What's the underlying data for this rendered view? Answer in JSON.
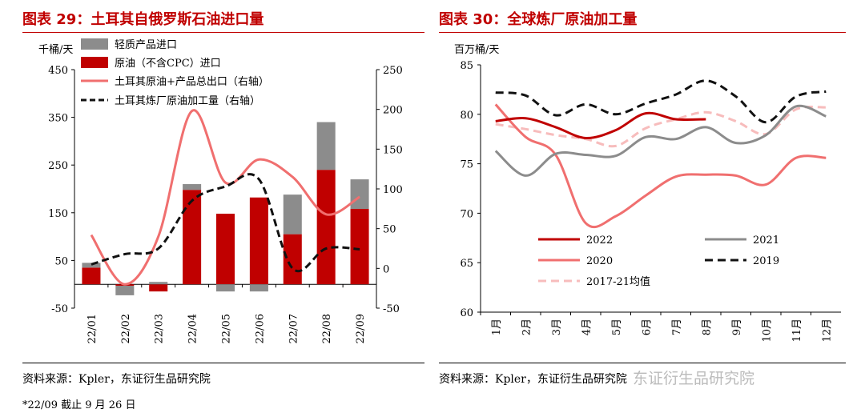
{
  "left": {
    "title": "图表 29：土耳其自俄罗斯石油进口量",
    "unit": "千桶/天",
    "source": "资料来源：Kpler，东证衍生品研究院",
    "note": "*22/09 截止 9 月 26 日"
  },
  "right": {
    "title": "图表 30：全球炼厂原油加工量",
    "unit": "百万桶/天",
    "source": "资料来源：Kpler，东证衍生品研究院"
  },
  "watermark": "东证衍生品研究院",
  "colors": {
    "title": "#c00000",
    "gray": "#8c8c8c",
    "red": "#c00000",
    "pink": "#f06f6f",
    "black": "#111111",
    "lightpink": "#f7bcbc"
  },
  "chart_data": [
    {
      "type": "bar",
      "categories": [
        "22/01",
        "22/02",
        "22/03",
        "22/04",
        "22/05",
        "22/06",
        "22/07",
        "22/08",
        "22/09"
      ],
      "ylim": [
        -50,
        450
      ],
      "yticks": [
        -50,
        50,
        150,
        250,
        350,
        450
      ],
      "y2lim": [
        -50,
        250
      ],
      "y2ticks": [
        -50,
        0,
        50,
        100,
        150,
        200,
        250
      ],
      "series": [
        {
          "name": "轻质产品进口",
          "kind": "bar",
          "axis": "left",
          "color": "#8c8c8c",
          "values": [
            10,
            -20,
            5,
            12,
            -15,
            -15,
            83,
            100,
            62
          ]
        },
        {
          "name": "原油（不含CPC）进口",
          "kind": "bar",
          "axis": "left",
          "color": "#c00000",
          "values": [
            35,
            -3,
            -15,
            198,
            148,
            182,
            105,
            240,
            158
          ]
        },
        {
          "name": "土耳其原油+产品总出口（右轴）",
          "kind": "line",
          "axis": "right",
          "color": "#f06f6f",
          "values": [
            42,
            -20,
            40,
            198,
            108,
            137,
            115,
            68,
            90
          ]
        },
        {
          "name": "土耳其炼厂原油加工量（右轴）",
          "kind": "line",
          "axis": "right",
          "dashed": true,
          "color": "#111111",
          "values": [
            5,
            18,
            25,
            85,
            103,
            112,
            0,
            25,
            24
          ]
        }
      ],
      "legend": "top-left"
    },
    {
      "type": "line",
      "categories": [
        "1月",
        "2月",
        "3月",
        "4月",
        "5月",
        "6月",
        "7月",
        "8月",
        "9月",
        "10月",
        "11月",
        "12月"
      ],
      "ylim": [
        60,
        85
      ],
      "yticks": [
        60,
        65,
        70,
        75,
        80,
        85
      ],
      "series": [
        {
          "name": "2022",
          "color": "#c00000",
          "values": [
            79.3,
            79.6,
            78.7,
            77.6,
            78.4,
            80.1,
            79.5,
            79.5,
            null,
            null,
            null,
            null
          ]
        },
        {
          "name": "2021",
          "color": "#8c8c8c",
          "values": [
            76.3,
            73.8,
            76.0,
            75.9,
            75.8,
            77.7,
            77.5,
            78.7,
            77.1,
            77.9,
            80.8,
            79.8
          ]
        },
        {
          "name": "2020",
          "color": "#f06f6f",
          "values": [
            81.0,
            77.7,
            75.9,
            69.0,
            69.7,
            71.8,
            73.7,
            73.9,
            73.8,
            72.9,
            75.6,
            75.6
          ]
        },
        {
          "name": "2019",
          "color": "#111111",
          "dashed": true,
          "values": [
            82.2,
            81.9,
            79.9,
            81.0,
            80.0,
            81.1,
            82.0,
            83.4,
            81.8,
            79.2,
            81.8,
            82.3
          ]
        },
        {
          "name": "2017-21均值",
          "color": "#f7bcbc",
          "dashed": true,
          "values": [
            79.0,
            78.5,
            77.9,
            77.5,
            76.8,
            78.6,
            79.5,
            80.2,
            79.3,
            78.0,
            80.5,
            80.7
          ]
        }
      ],
      "legend": "bottom-left"
    }
  ]
}
